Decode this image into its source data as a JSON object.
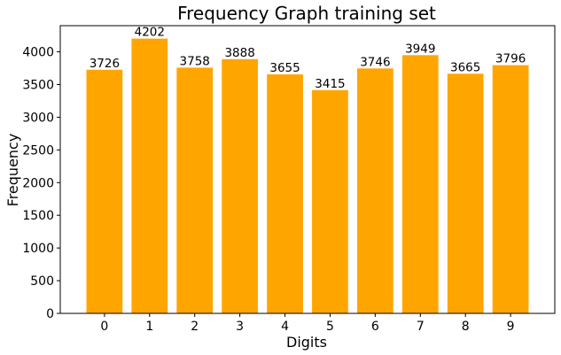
{
  "chart_data": {
    "type": "bar",
    "title": "Frequency Graph training set",
    "xlabel": "Digits",
    "ylabel": "Frequency",
    "categories": [
      "0",
      "1",
      "2",
      "3",
      "4",
      "5",
      "6",
      "7",
      "8",
      "9"
    ],
    "values": [
      3726,
      4202,
      3758,
      3888,
      3655,
      3415,
      3746,
      3949,
      3665,
      3796
    ],
    "ylim": [
      0,
      4400
    ],
    "yticks": [
      0,
      500,
      1000,
      1500,
      2000,
      2500,
      3000,
      3500,
      4000
    ],
    "grid": false,
    "legend": "none",
    "bar_color": "#FFA500",
    "data_labels": [
      "3726",
      "4202",
      "3758",
      "3888",
      "3655",
      "3415",
      "3746",
      "3949",
      "3665",
      "3796"
    ]
  }
}
